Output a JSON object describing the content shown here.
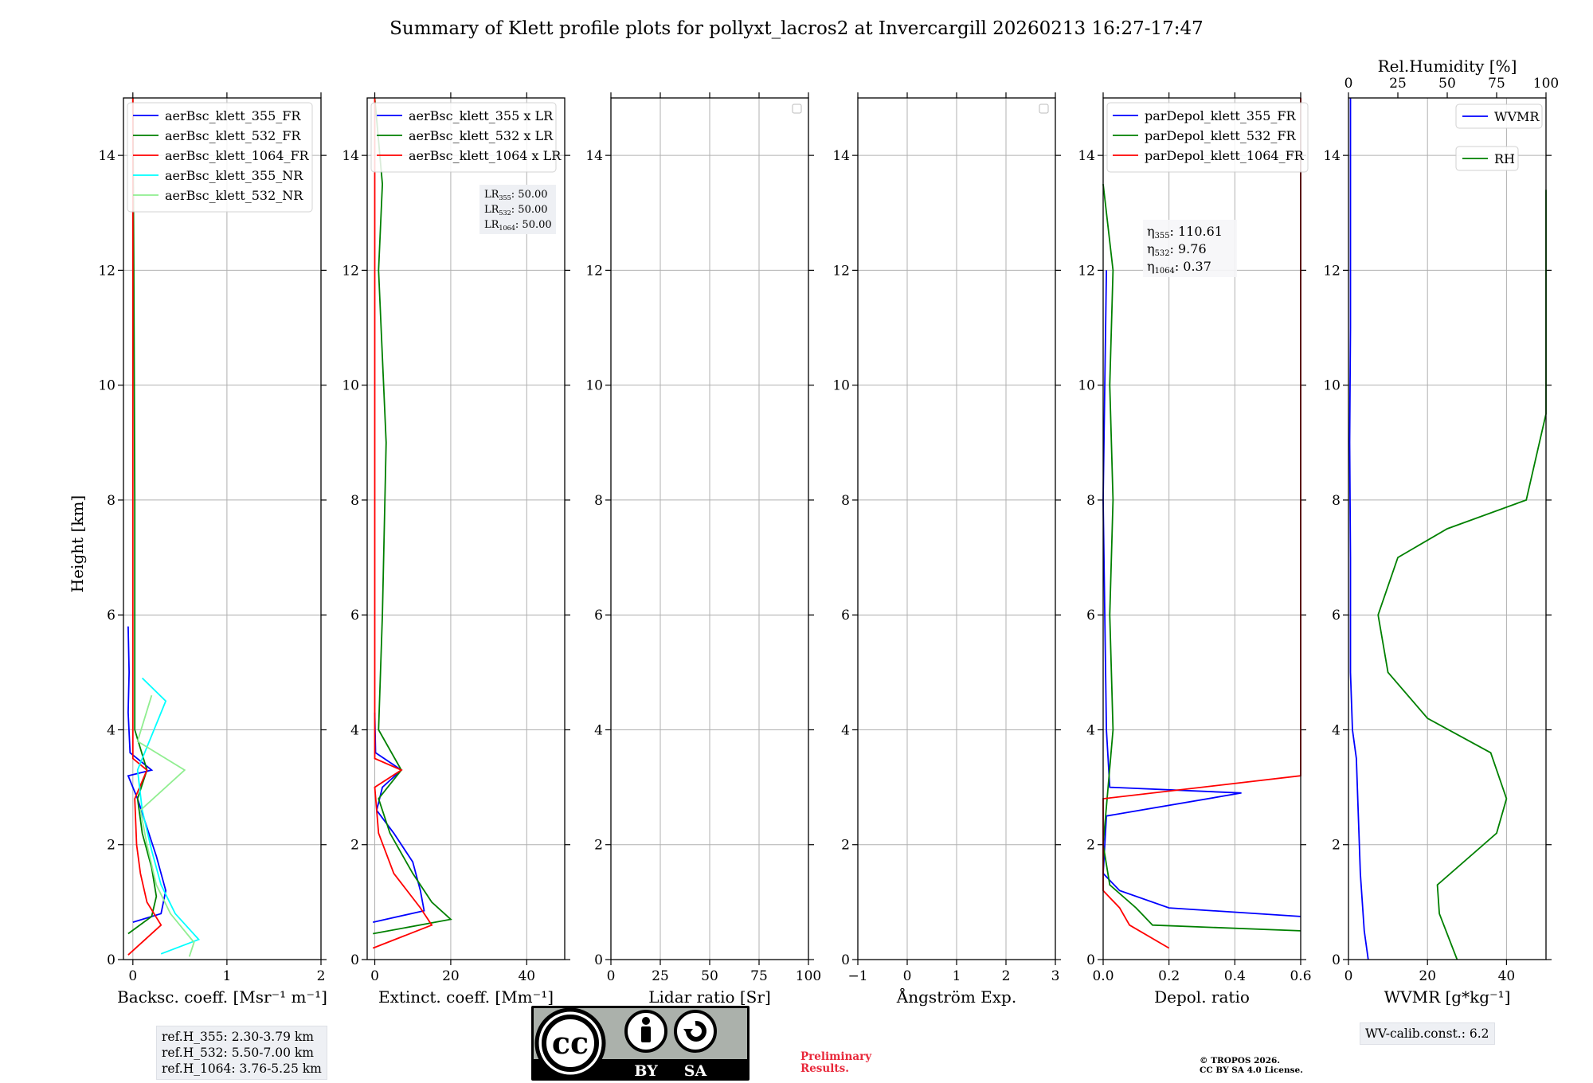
{
  "title": "Summary of Klett profile plots for pollyxt_lacros2 at Invercargill 20260213 16:27-17:47",
  "ylabel": "Height [km]",
  "height_ticks": [
    "0",
    "2",
    "4",
    "6",
    "8",
    "10",
    "12",
    "14"
  ],
  "height_range": [
    0,
    15
  ],
  "panels": [
    {
      "id": "backscatter",
      "xlabel": "Backsc. coeff. [Msr⁻¹ m⁻¹]",
      "xlim": [
        -0.1,
        2.0
      ],
      "xticks": [
        {
          "v": 0,
          "l": "0"
        },
        {
          "v": 1,
          "l": "1"
        },
        {
          "v": 2,
          "l": "2"
        }
      ],
      "legend": [
        {
          "label": "aerBsc_klett_355_FR",
          "color": "#0000ff"
        },
        {
          "label": "aerBsc_klett_532_FR",
          "color": "#008000"
        },
        {
          "label": "aerBsc_klett_1064_FR",
          "color": "#ff0000"
        },
        {
          "label": "aerBsc_klett_355_NR",
          "color": "#00ffff"
        },
        {
          "label": "aerBsc_klett_532_NR",
          "color": "#90ee90"
        }
      ]
    },
    {
      "id": "extinction",
      "xlabel": "Extinct. coeff. [Mm⁻¹]",
      "xlim": [
        -2,
        50
      ],
      "xticks": [
        {
          "v": 0,
          "l": "0"
        },
        {
          "v": 20,
          "l": "20"
        },
        {
          "v": 40,
          "l": "40"
        }
      ],
      "legend": [
        {
          "label": "aerBsc_klett_355 x LR",
          "color": "#0000ff"
        },
        {
          "label": "aerBsc_klett_532 x LR",
          "color": "#008000"
        },
        {
          "label": "aerBsc_klett_1064 x LR",
          "color": "#ff0000"
        }
      ],
      "lr_box": [
        {
          "name": "LR",
          "sub": "355",
          "value": ": 50.00"
        },
        {
          "name": "LR",
          "sub": "532",
          "value": ": 50.00"
        },
        {
          "name": "LR",
          "sub": "1064",
          "value": ": 50.00"
        }
      ]
    },
    {
      "id": "lidar-ratio",
      "xlabel": "Lidar ratio [Sr]",
      "xlim": [
        0,
        100
      ],
      "xticks": [
        {
          "v": 0,
          "l": "0"
        },
        {
          "v": 25,
          "l": "25"
        },
        {
          "v": 50,
          "l": "50"
        },
        {
          "v": 75,
          "l": "75"
        },
        {
          "v": 100,
          "l": "100"
        }
      ],
      "legend": []
    },
    {
      "id": "angstrom",
      "xlabel": "Ångström Exp.",
      "xlim": [
        -1,
        3
      ],
      "xticks": [
        {
          "v": -1,
          "l": "−1"
        },
        {
          "v": 0,
          "l": "0"
        },
        {
          "v": 1,
          "l": "1"
        },
        {
          "v": 2,
          "l": "2"
        },
        {
          "v": 3,
          "l": "3"
        }
      ],
      "legend": []
    },
    {
      "id": "depol",
      "xlabel": "Depol. ratio",
      "xlim": [
        0,
        0.6
      ],
      "xticks": [
        {
          "v": 0,
          "l": "0.0"
        },
        {
          "v": 0.2,
          "l": "0.2"
        },
        {
          "v": 0.4,
          "l": "0.4"
        },
        {
          "v": 0.6,
          "l": "0.6"
        }
      ],
      "legend": [
        {
          "label": "parDepol_klett_355_FR",
          "color": "#0000ff"
        },
        {
          "label": "parDepol_klett_532_FR",
          "color": "#008000"
        },
        {
          "label": "parDepol_klett_1064_FR",
          "color": "#ff0000"
        }
      ],
      "eta_box": [
        {
          "name": "η",
          "sub": "355",
          "value": ": 110.61"
        },
        {
          "name": "η",
          "sub": "532",
          "value": ": 9.76"
        },
        {
          "name": "η",
          "sub": "1064",
          "value": ": 0.37"
        }
      ]
    },
    {
      "id": "wvmr",
      "xlabel": "WVMR [g*kg⁻¹]",
      "xlim": [
        0,
        50
      ],
      "xticks": [
        {
          "v": 0,
          "l": "0"
        },
        {
          "v": 20,
          "l": "20"
        },
        {
          "v": 40,
          "l": "40"
        }
      ],
      "top_label": "Rel.Humidity [%]",
      "top_xlim": [
        0,
        100
      ],
      "top_xticks": [
        {
          "v": 0,
          "l": "0"
        },
        {
          "v": 25,
          "l": "25"
        },
        {
          "v": 50,
          "l": "50"
        },
        {
          "v": 75,
          "l": "75"
        },
        {
          "v": 100,
          "l": "100"
        }
      ],
      "legend": [
        {
          "label": "WVMR",
          "color": "#0000ff"
        },
        {
          "label": "RH",
          "color": "#008000"
        }
      ]
    }
  ],
  "chart_data": {
    "type": "line",
    "title": "Summary of Klett profile plots for pollyxt_lacros2 at Invercargill 20260213 16:27-17:47",
    "y": "height_km",
    "series": [
      {
        "name": "aerBsc_klett_355_FR",
        "panel": "backscatter",
        "color": "#0000ff",
        "points": [
          [
            0.0,
            0.65
          ],
          [
            0.3,
            0.8
          ],
          [
            0.35,
            1.2
          ],
          [
            0.25,
            1.8
          ],
          [
            0.15,
            2.3
          ],
          [
            0.05,
            2.8
          ],
          [
            -0.05,
            3.2
          ],
          [
            0.2,
            3.3
          ],
          [
            -0.03,
            3.6
          ],
          [
            -0.05,
            4.3
          ],
          [
            -0.04,
            5.0
          ],
          [
            -0.05,
            5.8
          ]
        ]
      },
      {
        "name": "aerBsc_klett_532_FR",
        "panel": "backscatter",
        "color": "#008000",
        "points": [
          [
            -0.05,
            0.45
          ],
          [
            0.2,
            0.75
          ],
          [
            0.25,
            1.1
          ],
          [
            0.2,
            1.6
          ],
          [
            0.1,
            2.2
          ],
          [
            0.05,
            2.8
          ],
          [
            0.15,
            3.3
          ],
          [
            0.02,
            4.0
          ],
          [
            0.02,
            8.0
          ],
          [
            0.01,
            12.0
          ],
          [
            0.0,
            15.0
          ]
        ]
      },
      {
        "name": "aerBsc_klett_1064_FR",
        "panel": "backscatter",
        "color": "#ff0000",
        "points": [
          [
            -0.05,
            0.08
          ],
          [
            0.3,
            0.6
          ],
          [
            0.15,
            1.0
          ],
          [
            0.08,
            1.5
          ],
          [
            0.04,
            2.0
          ],
          [
            0.02,
            2.8
          ],
          [
            0.15,
            3.3
          ],
          [
            0.0,
            3.5
          ],
          [
            0.0,
            8.0
          ],
          [
            0.0,
            15.0
          ]
        ]
      },
      {
        "name": "aerBsc_klett_355_NR",
        "panel": "backscatter",
        "color": "#00ffff",
        "points": [
          [
            0.3,
            0.1
          ],
          [
            0.7,
            0.35
          ],
          [
            0.45,
            0.8
          ],
          [
            0.3,
            1.3
          ],
          [
            0.2,
            1.9
          ],
          [
            0.1,
            2.6
          ],
          [
            0.05,
            3.3
          ],
          [
            0.35,
            4.5
          ],
          [
            0.1,
            4.9
          ]
        ]
      },
      {
        "name": "aerBsc_klett_532_NR",
        "panel": "backscatter",
        "color": "#90ee90",
        "points": [
          [
            0.6,
            0.05
          ],
          [
            0.65,
            0.3
          ],
          [
            0.4,
            0.8
          ],
          [
            0.25,
            1.3
          ],
          [
            0.15,
            2.0
          ],
          [
            0.08,
            2.6
          ],
          [
            0.55,
            3.3
          ],
          [
            0.05,
            3.8
          ],
          [
            0.2,
            4.6
          ]
        ]
      },
      {
        "name": "aerBsc_klett_355 x LR",
        "panel": "extinction",
        "color": "#0000ff",
        "points": [
          [
            -0.5,
            0.65
          ],
          [
            13,
            0.85
          ],
          [
            12,
            1.2
          ],
          [
            10,
            1.7
          ],
          [
            5,
            2.2
          ],
          [
            0.5,
            2.6
          ],
          [
            2,
            3.0
          ],
          [
            7,
            3.3
          ],
          [
            0.2,
            3.6
          ],
          [
            0,
            4.3
          ]
        ]
      },
      {
        "name": "aerBsc_klett_532 x LR",
        "panel": "extinction",
        "color": "#008000",
        "points": [
          [
            -0.5,
            0.45
          ],
          [
            20,
            0.7
          ],
          [
            15,
            1.0
          ],
          [
            10,
            1.5
          ],
          [
            4,
            2.2
          ],
          [
            1,
            2.8
          ],
          [
            7,
            3.3
          ],
          [
            1,
            4.0
          ],
          [
            2,
            6.0
          ],
          [
            3,
            9.0
          ],
          [
            1,
            12.0
          ],
          [
            2,
            13.5
          ],
          [
            0,
            15.0
          ]
        ]
      },
      {
        "name": "aerBsc_klett_1064 x LR",
        "panel": "extinction",
        "color": "#ff0000",
        "points": [
          [
            -0.5,
            0.2
          ],
          [
            15,
            0.6
          ],
          [
            12,
            0.9
          ],
          [
            5,
            1.5
          ],
          [
            1,
            2.2
          ],
          [
            0,
            3.0
          ],
          [
            7,
            3.3
          ],
          [
            0,
            3.5
          ],
          [
            0,
            8.0
          ],
          [
            0,
            15.0
          ]
        ]
      },
      {
        "name": "parDepol_klett_355_FR",
        "panel": "depol",
        "color": "#0000ff",
        "points": [
          [
            0.6,
            0.75
          ],
          [
            0.2,
            0.9
          ],
          [
            0.05,
            1.2
          ],
          [
            0.0,
            1.5
          ],
          [
            0.01,
            2.5
          ],
          [
            0.42,
            2.9
          ],
          [
            0.02,
            3.0
          ],
          [
            0.01,
            4.0
          ],
          [
            0.0,
            8.0
          ],
          [
            0.01,
            12.0
          ]
        ]
      },
      {
        "name": "parDepol_klett_532_FR",
        "panel": "depol",
        "color": "#008000",
        "points": [
          [
            0.6,
            0.5
          ],
          [
            0.15,
            0.6
          ],
          [
            0.1,
            0.9
          ],
          [
            0.02,
            1.3
          ],
          [
            0.0,
            2.0
          ],
          [
            0.03,
            4.0
          ],
          [
            0.02,
            6.0
          ],
          [
            0.03,
            8.0
          ],
          [
            0.02,
            10.0
          ],
          [
            0.03,
            12.0
          ],
          [
            0.0,
            13.5
          ]
        ]
      },
      {
        "name": "parDepol_klett_1064_FR",
        "panel": "depol",
        "color": "#ff0000",
        "points": [
          [
            0.2,
            0.2
          ],
          [
            0.08,
            0.6
          ],
          [
            0.05,
            0.9
          ],
          [
            0.0,
            1.2
          ],
          [
            0.0,
            2.8
          ],
          [
            0.6,
            3.2
          ],
          [
            0.6,
            4.8
          ],
          [
            0.6,
            6.2
          ],
          [
            0.6,
            7.8
          ],
          [
            0.6,
            10.0
          ],
          [
            0.6,
            12.0
          ],
          [
            0.6,
            14.0
          ],
          [
            0.6,
            15.0
          ]
        ]
      },
      {
        "name": "WVMR",
        "panel": "wvmr",
        "color": "#0000ff",
        "points": [
          [
            5,
            0.0
          ],
          [
            4,
            0.5
          ],
          [
            3,
            1.5
          ],
          [
            2.5,
            2.5
          ],
          [
            2,
            3.5
          ],
          [
            1,
            4.0
          ],
          [
            0.5,
            5.0
          ],
          [
            0.5,
            7.0
          ],
          [
            0.3,
            9.0
          ],
          [
            0.5,
            11.0
          ],
          [
            0.5,
            13.0
          ],
          [
            0.5,
            15.0
          ]
        ]
      },
      {
        "name": "RH",
        "panel": "wvmr",
        "color": "#008000",
        "axis": "top",
        "points": [
          [
            55,
            0.0
          ],
          [
            46,
            0.8
          ],
          [
            45,
            1.3
          ],
          [
            75,
            2.2
          ],
          [
            80,
            2.8
          ],
          [
            72,
            3.6
          ],
          [
            40,
            4.2
          ],
          [
            20,
            5.0
          ],
          [
            15,
            6.0
          ],
          [
            25,
            7.0
          ],
          [
            50,
            7.5
          ],
          [
            90,
            8.0
          ],
          [
            100,
            9.5
          ],
          [
            100,
            13.4
          ]
        ]
      }
    ]
  },
  "ref_heights": [
    "ref.H_355: 2.30-3.79 km",
    "ref.H_532: 5.50-7.00 km",
    "ref.H_1064: 3.76-5.25 km"
  ],
  "license_logo": {
    "cc": "cc",
    "by": "BY",
    "sa": "SA"
  },
  "preliminary": [
    "Preliminary",
    "Results."
  ],
  "copyright": [
    "© TROPOS 2026.",
    "CC BY SA 4.0 License."
  ],
  "wv_calib": "WV-calib.const.: 6.2"
}
